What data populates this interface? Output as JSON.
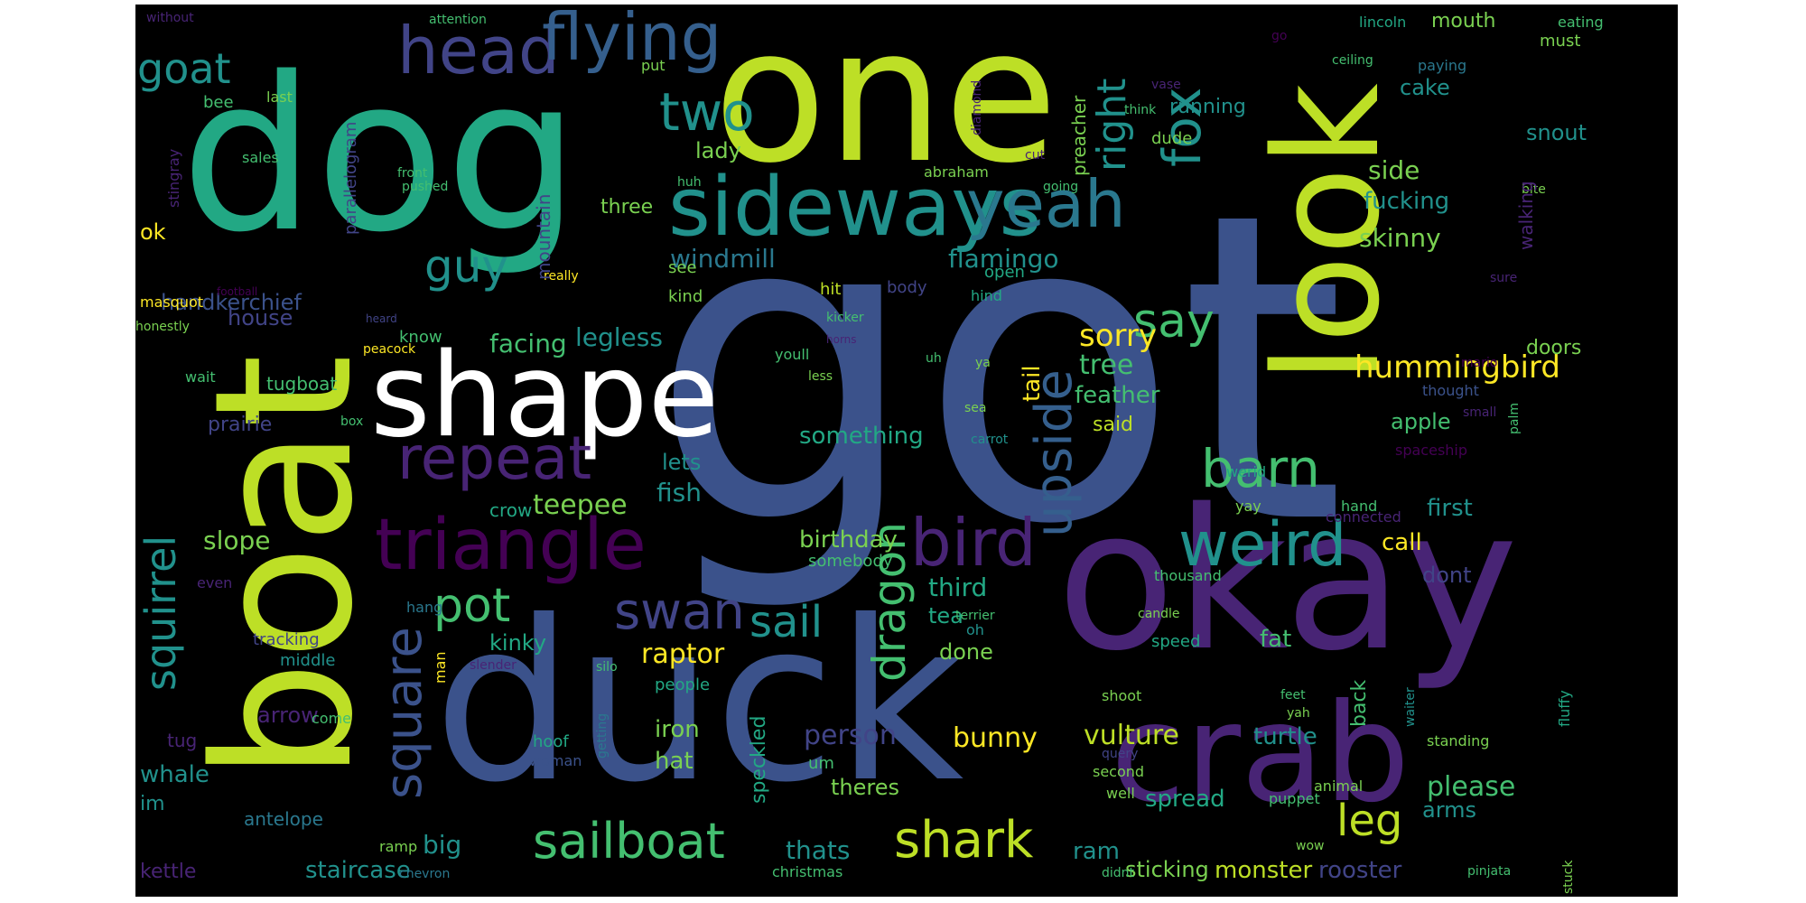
{
  "cloud": {
    "colors": {
      "c0": "#482475",
      "c1": "#414487",
      "c2": "#355f8d",
      "c3": "#2a788e",
      "c4": "#21918c",
      "c5": "#22a884",
      "c6": "#44bf70",
      "c7": "#7ad151",
      "c8": "#bddf26",
      "c9": "#fde725",
      "c10": "#440154",
      "c11": "#3b528b"
    },
    "words": [
      "got",
      "one",
      "dog",
      "duck",
      "okay",
      "boat",
      "look",
      "crab",
      "shape",
      "sideways",
      "yeah",
      "triangle",
      "square",
      "head",
      "flying",
      "bird",
      "weird",
      "two",
      "goat",
      "guy",
      "repeat",
      "squirrel",
      "fox",
      "right",
      "say",
      "barn",
      "swan",
      "sail",
      "pot",
      "dragon",
      "upside",
      "shark",
      "sailboat",
      "leg",
      "sorry",
      "tree",
      "tail",
      "feather",
      "said",
      "hummingbird",
      "skinny",
      "side",
      "fucking",
      "cake",
      "snout",
      "mouth",
      "eating",
      "must",
      "lincoln",
      "paying",
      "running",
      "preacher",
      "dude",
      "vase",
      "think",
      "ceiling",
      "attention",
      "without",
      "stingray",
      "bee",
      "last",
      "sales",
      "parallelogram",
      "front",
      "pushed",
      "handkerchief",
      "windmill",
      "flamingo",
      "house",
      "hit",
      "body",
      "open",
      "kind",
      "see",
      "really",
      "masquot",
      "football",
      "honestly",
      "heard",
      "peacock",
      "facing",
      "legless",
      "know",
      "wait",
      "tugboat",
      "prairie",
      "box",
      "mountain",
      "three",
      "lady",
      "huh",
      "abraham",
      "going",
      "bite",
      "sure",
      "hind",
      "kicker",
      "horns",
      "youll",
      "less",
      "uh",
      "ya",
      "mario",
      "doors",
      "thought",
      "small",
      "palm",
      "something",
      "sea",
      "carrot",
      "apple",
      "lets",
      "fish",
      "crow",
      "teepee",
      "slope",
      "even",
      "hang",
      "tracking",
      "middle",
      "kinky",
      "raptor",
      "birthday",
      "somebody",
      "third",
      "tea",
      "done",
      "oh",
      "candle",
      "silo",
      "slender",
      "man",
      "people",
      "speed",
      "fat",
      "call",
      "dont",
      "first",
      "hand",
      "connected",
      "werid",
      "yay",
      "thousand",
      "terrier",
      "spaceship",
      "walking",
      "arrow",
      "come",
      "tug",
      "whale",
      "im",
      "antelope",
      "hoof",
      "woman",
      "iron",
      "hat",
      "speckled",
      "getting",
      "person",
      "um",
      "theres",
      "bunny",
      "vulture",
      "turtle",
      "shoot",
      "query",
      "second",
      "well",
      "puppet",
      "animal",
      "spread",
      "please",
      "arms",
      "big",
      "staircase",
      "chevron",
      "kettle",
      "ramp",
      "thats",
      "christmas",
      "ram",
      "sticking",
      "monster",
      "rooster",
      "didnt",
      "stuck",
      "pinjata",
      "wow",
      "back",
      "waiter",
      "fluffy",
      "standing",
      "yah",
      "feet",
      "go",
      "diamond",
      "cut",
      "put",
      "ok"
    ]
  }
}
